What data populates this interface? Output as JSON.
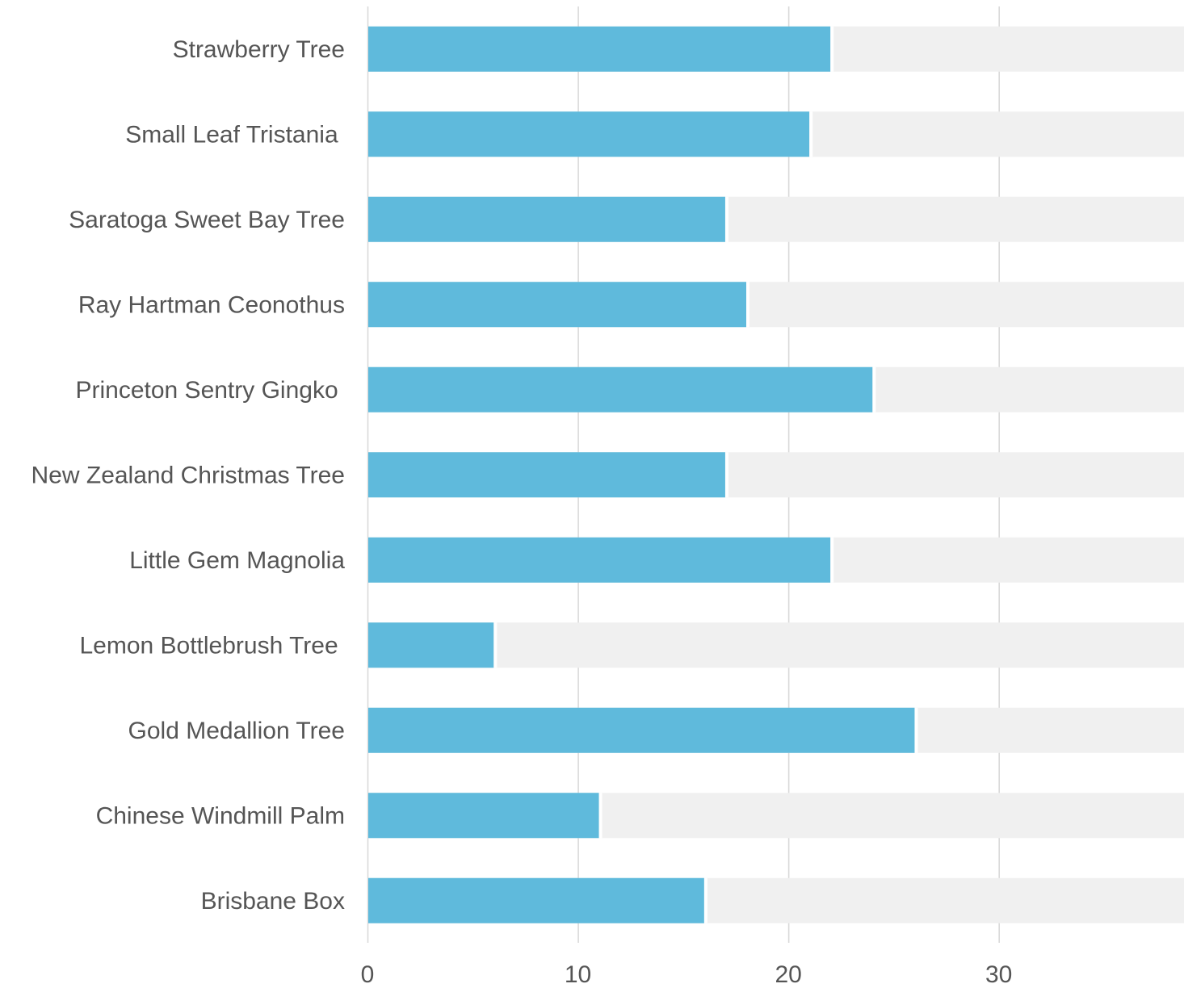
{
  "chart_data": {
    "type": "bar",
    "orientation": "horizontal",
    "title": "",
    "xlabel": "",
    "ylabel": "",
    "categories": [
      "Strawberry Tree",
      "Small Leaf Tristania ",
      "Saratoga Sweet Bay Tree",
      "Ray Hartman Ceonothus",
      "Princeton Sentry Gingko ",
      "New Zealand Christmas Tree",
      "Little Gem Magnolia",
      "Lemon Bottlebrush Tree ",
      "Gold Medallion Tree",
      "Chinese Windmill Palm",
      "Brisbane Box"
    ],
    "values": [
      22,
      21,
      17,
      18,
      24,
      17,
      22,
      6,
      26,
      11,
      16
    ],
    "background_value": 38.8,
    "xlim": [
      0,
      38.8
    ],
    "xticks": [
      0,
      10,
      20,
      30
    ],
    "grid": true,
    "colors": {
      "bar": "#5fbadc",
      "track": "#f0f0f0",
      "grid": "#d9d9d9",
      "text": "#555555"
    }
  }
}
